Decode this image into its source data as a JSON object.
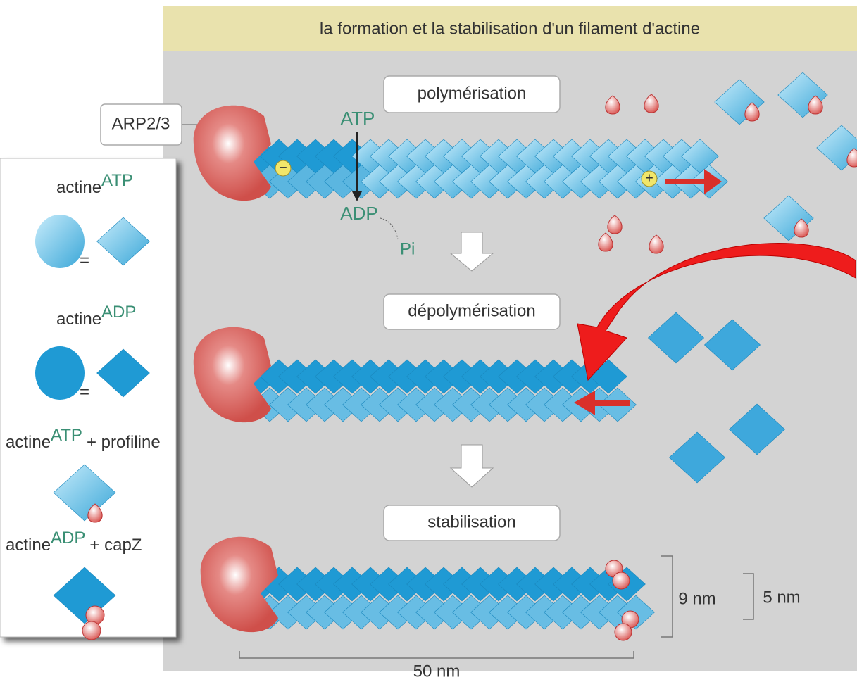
{
  "title": "la formation et la stabilisation d'un filament d'actine",
  "steps": {
    "polymerisation": "polymérisation",
    "depolymerisation": "dépolymérisation",
    "stabilisation": "stabilisation"
  },
  "labels": {
    "arp": "ARP2/3",
    "atp": "ATP",
    "adp": "ADP",
    "pi": "Pi",
    "minus": "−",
    "plus": "+"
  },
  "dimensions": {
    "height_outer": "9 nm",
    "height_inner": "5 nm",
    "length": "50 nm"
  },
  "legend": [
    {
      "name": "actine",
      "sup": "ATP",
      "equals": "="
    },
    {
      "name": "actine",
      "sup": "ADP",
      "equals": "="
    },
    {
      "name": "actine",
      "sup": "ATP",
      "suffix": "+ profiline"
    },
    {
      "name": "actine",
      "sup": "ADP",
      "suffix": "+ capZ"
    }
  ]
}
